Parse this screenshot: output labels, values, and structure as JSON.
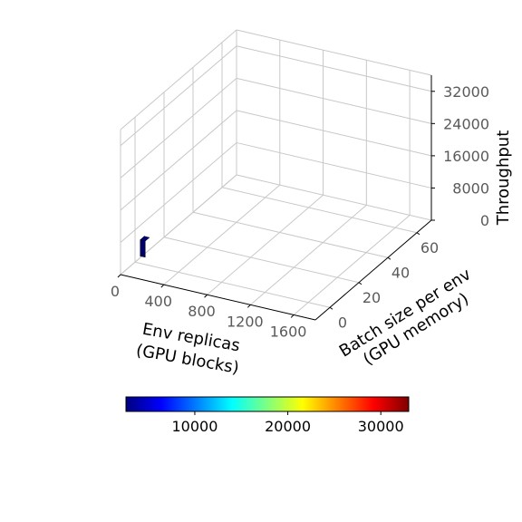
{
  "chart_data": {
    "type": "bar3d",
    "x_label_lines": [
      "Env replicas",
      "(GPU blocks)"
    ],
    "y_label_lines": [
      "Batch size per env",
      "(GPU memory)"
    ],
    "z_label": "Throughput",
    "x_ticks": [
      "0",
      "400",
      "800",
      "1200",
      "1600"
    ],
    "y_ticks": [
      "0",
      "20",
      "40",
      "60"
    ],
    "z_ticks": [
      "0",
      "8000",
      "16000",
      "24000",
      "32000"
    ],
    "xlim": [
      0,
      1800
    ],
    "ylim": [
      -10,
      70
    ],
    "zlim": [
      0,
      36000
    ],
    "bars": [
      {
        "x": 10,
        "y": 6,
        "z": 2600
      }
    ],
    "colorbar": {
      "colormap": "jet",
      "range": [
        2600,
        33000
      ],
      "ticks": [
        "10000",
        "20000",
        "30000"
      ],
      "tick_values": [
        10000,
        20000,
        30000
      ],
      "colors": [
        "#00007f",
        "#0000ff",
        "#007fff",
        "#00ffff",
        "#7fff7f",
        "#ffff00",
        "#ff7f00",
        "#ff0000",
        "#7f0000"
      ]
    },
    "grid": true
  }
}
